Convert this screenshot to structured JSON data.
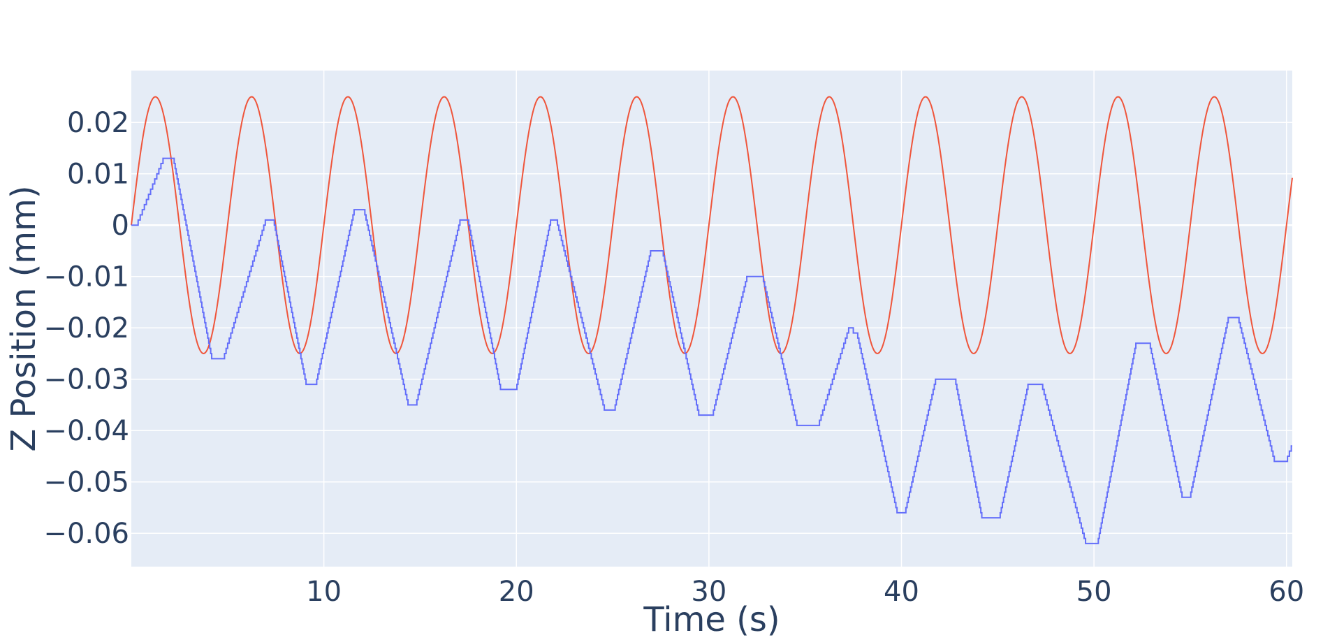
{
  "chart_data": {
    "type": "line",
    "title": "",
    "xlabel": "Time (s)",
    "ylabel": "Z Position (mm)",
    "xlim": [
      0,
      60.3
    ],
    "ylim": [
      -0.0665,
      0.0301
    ],
    "grid": true,
    "legend": "none",
    "x_ticks": [
      10,
      20,
      30,
      40,
      50,
      60
    ],
    "x_tick_labels": [
      "10",
      "20",
      "30",
      "40",
      "50",
      "60"
    ],
    "y_ticks": [
      0.02,
      0.01,
      0,
      -0.01,
      -0.02,
      -0.03,
      -0.04,
      -0.05,
      -0.06
    ],
    "y_tick_labels": [
      "0.02",
      "0.01",
      "0",
      "−0.01",
      "−0.02",
      "−0.03",
      "−0.04",
      "−0.05",
      "−0.06"
    ],
    "colors": {
      "plot_background": "#e5ecf6",
      "grid": "#ffffff",
      "text": "#2a3f5f"
    },
    "series": [
      {
        "color": "#ef553b",
        "description_of_shape": "sinusoid",
        "amplitude": 0.025,
        "period": 5.0,
        "phase_offset": 0,
        "x": [
          0,
          1.25,
          3.75,
          6.25,
          8.75,
          11.25,
          13.75,
          16.25,
          18.75,
          21.25,
          23.75,
          26.25,
          28.75,
          31.25,
          33.75,
          36.25,
          38.75,
          41.25,
          43.75,
          46.25,
          48.75,
          51.25,
          53.75,
          56.25,
          58.75,
          60.3
        ],
        "y": [
          0,
          0.025,
          -0.025,
          0.025,
          -0.025,
          0.025,
          -0.025,
          0.025,
          -0.025,
          0.025,
          -0.025,
          0.025,
          -0.025,
          0.025,
          -0.025,
          0.025,
          -0.025,
          0.025,
          -0.025,
          0.025,
          -0.025,
          0.025,
          -0.025,
          0.025,
          -0.025,
          0.0035
        ]
      },
      {
        "color": "#636efa",
        "line_shape": "stepped",
        "x": [
          0,
          0.3,
          1.7,
          2.2,
          4.2,
          4.8,
          7.0,
          7.4,
          9.1,
          9.6,
          11.6,
          12.1,
          14.4,
          14.8,
          17.1,
          17.5,
          19.2,
          20.0,
          21.8,
          22.1,
          24.6,
          25.1,
          27.0,
          27.6,
          29.5,
          30.2,
          32.0,
          32.8,
          34.6,
          35.7,
          37.3,
          37.7,
          39.8,
          40.2,
          41.8,
          42.8,
          44.2,
          45.1,
          46.6,
          47.3,
          49.6,
          50.2,
          52.2,
          52.9,
          54.6,
          55.0,
          57.0,
          57.5,
          59.4,
          60.0,
          60.3
        ],
        "y": [
          0,
          0,
          0.013,
          0.013,
          -0.026,
          -0.026,
          0.001,
          0.001,
          -0.031,
          -0.031,
          0.003,
          0.003,
          -0.035,
          -0.035,
          0.001,
          0.001,
          -0.032,
          -0.032,
          0.001,
          0.001,
          -0.036,
          -0.036,
          -0.005,
          -0.005,
          -0.037,
          -0.037,
          -0.01,
          -0.01,
          -0.039,
          -0.039,
          -0.02,
          -0.021,
          -0.056,
          -0.056,
          -0.03,
          -0.03,
          -0.057,
          -0.057,
          -0.031,
          -0.031,
          -0.062,
          -0.062,
          -0.023,
          -0.023,
          -0.053,
          -0.053,
          -0.018,
          -0.018,
          -0.046,
          -0.046,
          -0.043
        ]
      }
    ]
  }
}
